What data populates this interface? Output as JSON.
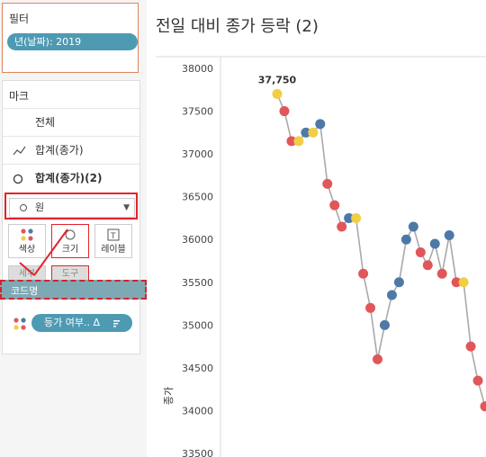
{
  "filters": {
    "title": "필터",
    "pill": "년(날짜): 2019"
  },
  "marks": {
    "title": "마크",
    "rows": [
      {
        "label": "전체",
        "icon": ""
      },
      {
        "label": "합계(종가)",
        "icon": "line-icon"
      },
      {
        "label": "합계(종가)(2)",
        "icon": "circle-icon"
      }
    ],
    "mark_type": "원",
    "tiles": {
      "color": "색상",
      "size": "크기",
      "label": "레이블",
      "detail": "세부\n정보",
      "tooltip": "도구\n설명"
    },
    "dragging_label": "코드명",
    "color_pill": "등가 여부.. Δ"
  },
  "chart": {
    "title": "전일 대비 종가 등락 (2)",
    "annotation": "37,750",
    "colors": {
      "up": "#4e79a7",
      "down": "#e15759",
      "same": "#f1ce44",
      "line": "#a9a9a9"
    }
  },
  "chart_data": {
    "type": "line",
    "ylabel": "종가",
    "ylim": [
      33500,
      38000
    ],
    "yticks": [
      38000,
      37500,
      37000,
      36500,
      36000,
      35500,
      35000,
      34500,
      34000,
      33500
    ],
    "points": [
      {
        "y": 37700,
        "c": "same"
      },
      {
        "y": 37500,
        "c": "down"
      },
      {
        "y": 37150,
        "c": "down"
      },
      {
        "y": 37150,
        "c": "same"
      },
      {
        "y": 37250,
        "c": "up"
      },
      {
        "y": 37250,
        "c": "same"
      },
      {
        "y": 37350,
        "c": "up"
      },
      {
        "y": 36650,
        "c": "down"
      },
      {
        "y": 36400,
        "c": "down"
      },
      {
        "y": 36150,
        "c": "down"
      },
      {
        "y": 36250,
        "c": "up"
      },
      {
        "y": 36250,
        "c": "same"
      },
      {
        "y": 35600,
        "c": "down"
      },
      {
        "y": 35200,
        "c": "down"
      },
      {
        "y": 34600,
        "c": "down"
      },
      {
        "y": 35000,
        "c": "up"
      },
      {
        "y": 35350,
        "c": "up"
      },
      {
        "y": 35500,
        "c": "up"
      },
      {
        "y": 36000,
        "c": "up"
      },
      {
        "y": 36150,
        "c": "up"
      },
      {
        "y": 35850,
        "c": "down"
      },
      {
        "y": 35700,
        "c": "down"
      },
      {
        "y": 35950,
        "c": "up"
      },
      {
        "y": 35600,
        "c": "down"
      },
      {
        "y": 36050,
        "c": "up"
      },
      {
        "y": 35500,
        "c": "down"
      },
      {
        "y": 35500,
        "c": "same"
      },
      {
        "y": 34750,
        "c": "down"
      },
      {
        "y": 34350,
        "c": "down"
      },
      {
        "y": 34050,
        "c": "down"
      }
    ]
  }
}
